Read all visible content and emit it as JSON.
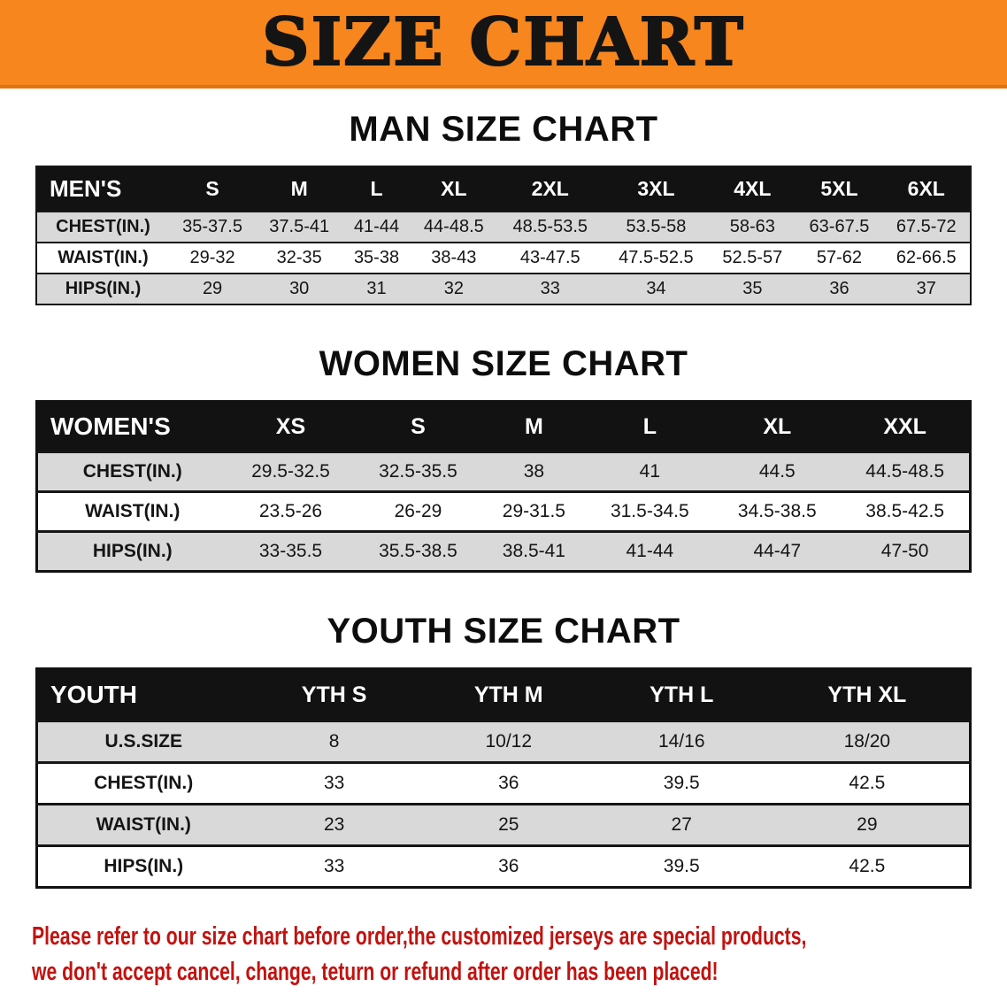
{
  "banner": {
    "title": "SIZE CHART",
    "bg_color": "#f6861d",
    "text_color": "#141414"
  },
  "sections": [
    {
      "id": "men",
      "heading": "MAN SIZE CHART",
      "table": {
        "header": [
          "MEN'S",
          "S",
          "M",
          "L",
          "XL",
          "2XL",
          "3XL",
          "4XL",
          "5XL",
          "6XL"
        ],
        "rows": [
          {
            "label": "CHEST(IN.)",
            "values": [
              "35-37.5",
              "37.5-41",
              "41-44",
              "44-48.5",
              "48.5-53.5",
              "53.5-58",
              "58-63",
              "63-67.5",
              "67.5-72"
            ]
          },
          {
            "label": "WAIST(IN.)",
            "values": [
              "29-32",
              "32-35",
              "35-38",
              "38-43",
              "43-47.5",
              "47.5-52.5",
              "52.5-57",
              "57-62",
              "62-66.5"
            ]
          },
          {
            "label": "HIPS(IN.)",
            "values": [
              "29",
              "30",
              "31",
              "32",
              "33",
              "34",
              "35",
              "36",
              "37"
            ]
          }
        ]
      }
    },
    {
      "id": "women",
      "heading": "WOMEN SIZE CHART",
      "table": {
        "header": [
          "WOMEN'S",
          "XS",
          "S",
          "M",
          "L",
          "XL",
          "XXL"
        ],
        "rows": [
          {
            "label": "CHEST(IN.)",
            "values": [
              "29.5-32.5",
              "32.5-35.5",
              "38",
              "41",
              "44.5",
              "44.5-48.5"
            ]
          },
          {
            "label": "WAIST(IN.)",
            "values": [
              "23.5-26",
              "26-29",
              "29-31.5",
              "31.5-34.5",
              "34.5-38.5",
              "38.5-42.5"
            ]
          },
          {
            "label": "HIPS(IN.)",
            "values": [
              "33-35.5",
              "35.5-38.5",
              "38.5-41",
              "41-44",
              "44-47",
              "47-50"
            ]
          }
        ]
      }
    },
    {
      "id": "youth",
      "heading": "YOUTH SIZE CHART",
      "table": {
        "header": [
          "YOUTH",
          "YTH S",
          "YTH M",
          "YTH L",
          "YTH XL"
        ],
        "rows": [
          {
            "label": "U.S.SIZE",
            "values": [
              "8",
              "10/12",
              "14/16",
              "18/20"
            ]
          },
          {
            "label": "CHEST(IN.)",
            "values": [
              "33",
              "36",
              "39.5",
              "42.5"
            ]
          },
          {
            "label": "WAIST(IN.)",
            "values": [
              "23",
              "25",
              "27",
              "29"
            ]
          },
          {
            "label": "HIPS(IN.)",
            "values": [
              "33",
              "36",
              "39.5",
              "42.5"
            ]
          }
        ]
      }
    }
  ],
  "footer": {
    "line1": "Please refer to our size chart before order,the customized jerseys are special products,",
    "line2": "we don't accept cancel, change, teturn or refund after order has been placed!",
    "text_color": "#c3120f"
  }
}
